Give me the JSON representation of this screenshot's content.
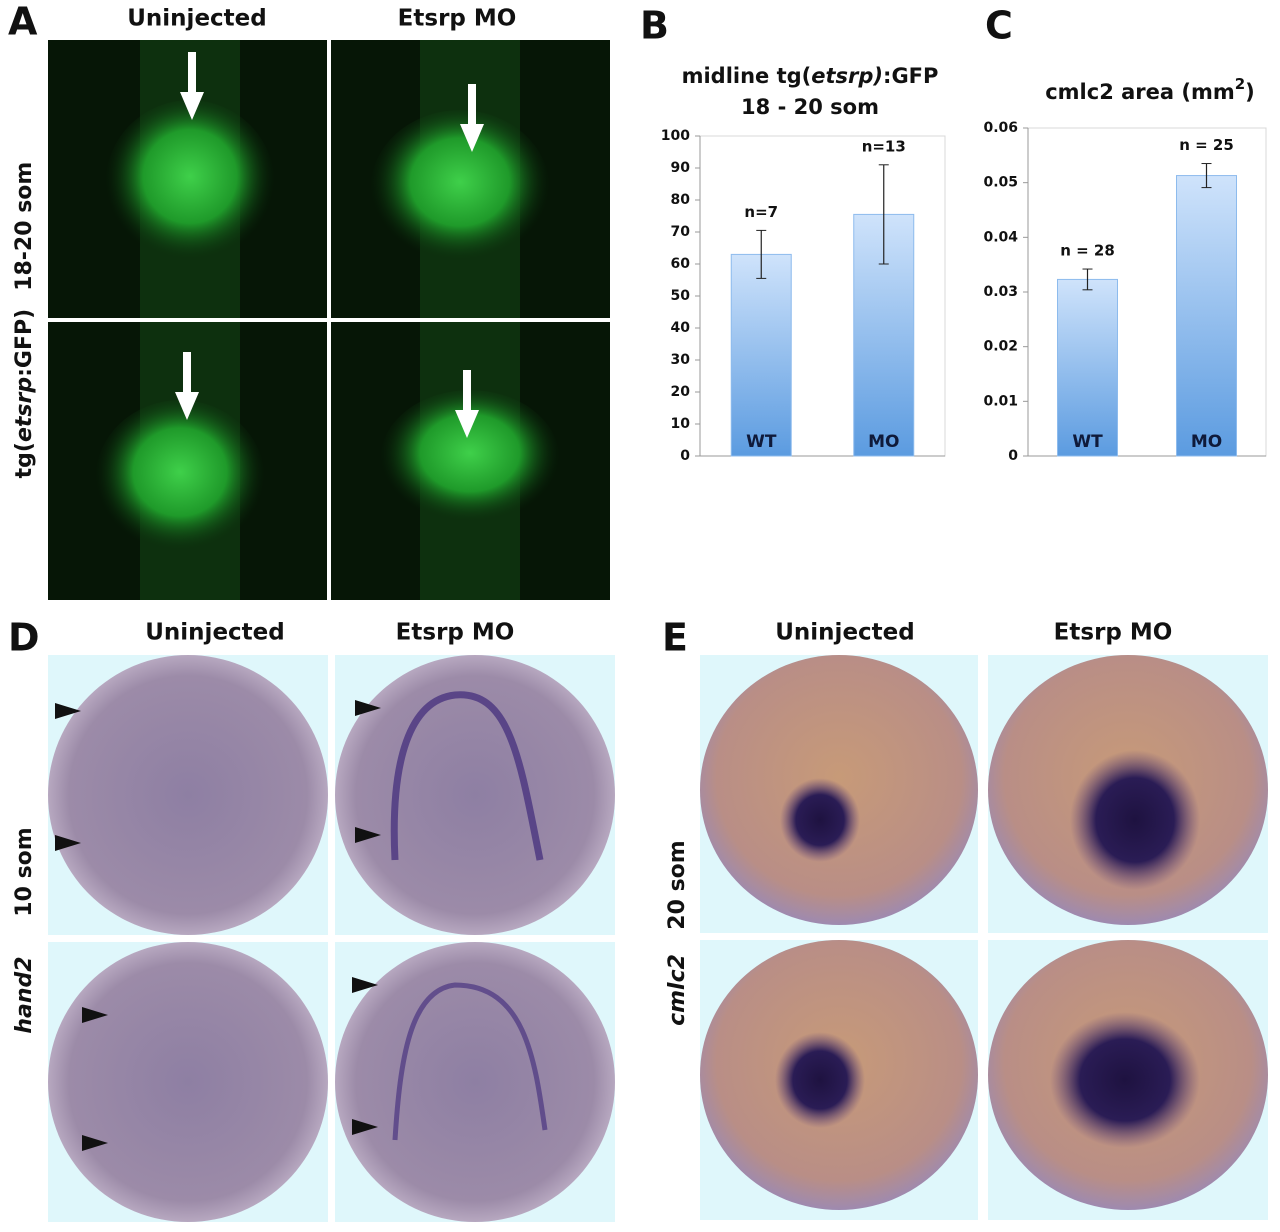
{
  "panel_labels": [
    "A",
    "B",
    "C",
    "D",
    "E"
  ],
  "panel_a": {
    "columns": [
      "Uninjected",
      "Etsrp MO"
    ],
    "row_label": {
      "parts": [
        "tg(",
        "etsrp",
        ":GFP)"
      ],
      "stage": "18-20 som"
    }
  },
  "chart_data": [
    {
      "type": "bar",
      "title_parts": [
        "midline tg(",
        "etsrp)",
        ":GFP"
      ],
      "subtitle": "18 - 20 som",
      "categories": [
        "WT",
        "MO"
      ],
      "values": [
        63,
        75.5
      ],
      "errors": [
        7.5,
        15.5
      ],
      "annotations": [
        "n=7",
        "n=13"
      ],
      "color": "#8dbbed",
      "ylim": [
        0,
        100
      ],
      "yticks": [
        0,
        10,
        20,
        30,
        40,
        50,
        60,
        70,
        80,
        90,
        100
      ],
      "grid": false
    },
    {
      "type": "bar",
      "title_parts": [
        "cmlc2 area (mm",
        "2",
        ")"
      ],
      "categories": [
        "WT",
        "MO"
      ],
      "values": [
        0.0323,
        0.0513
      ],
      "errors": [
        0.0019,
        0.0022
      ],
      "annotations": [
        "n = 28",
        "n = 25"
      ],
      "color": "#8dbbed",
      "ylim": [
        0,
        0.06
      ],
      "yticks": [
        0,
        0.01,
        0.02,
        0.03,
        0.04,
        0.05,
        0.06
      ],
      "grid": false
    }
  ],
  "panel_d": {
    "columns": [
      "Uninjected",
      "Etsrp MO"
    ],
    "row_labels": [
      "10 som",
      "hand2"
    ]
  },
  "panel_e": {
    "columns": [
      "Uninjected",
      "Etsrp MO"
    ],
    "row_labels": [
      "20 som",
      "cmlc2"
    ]
  }
}
